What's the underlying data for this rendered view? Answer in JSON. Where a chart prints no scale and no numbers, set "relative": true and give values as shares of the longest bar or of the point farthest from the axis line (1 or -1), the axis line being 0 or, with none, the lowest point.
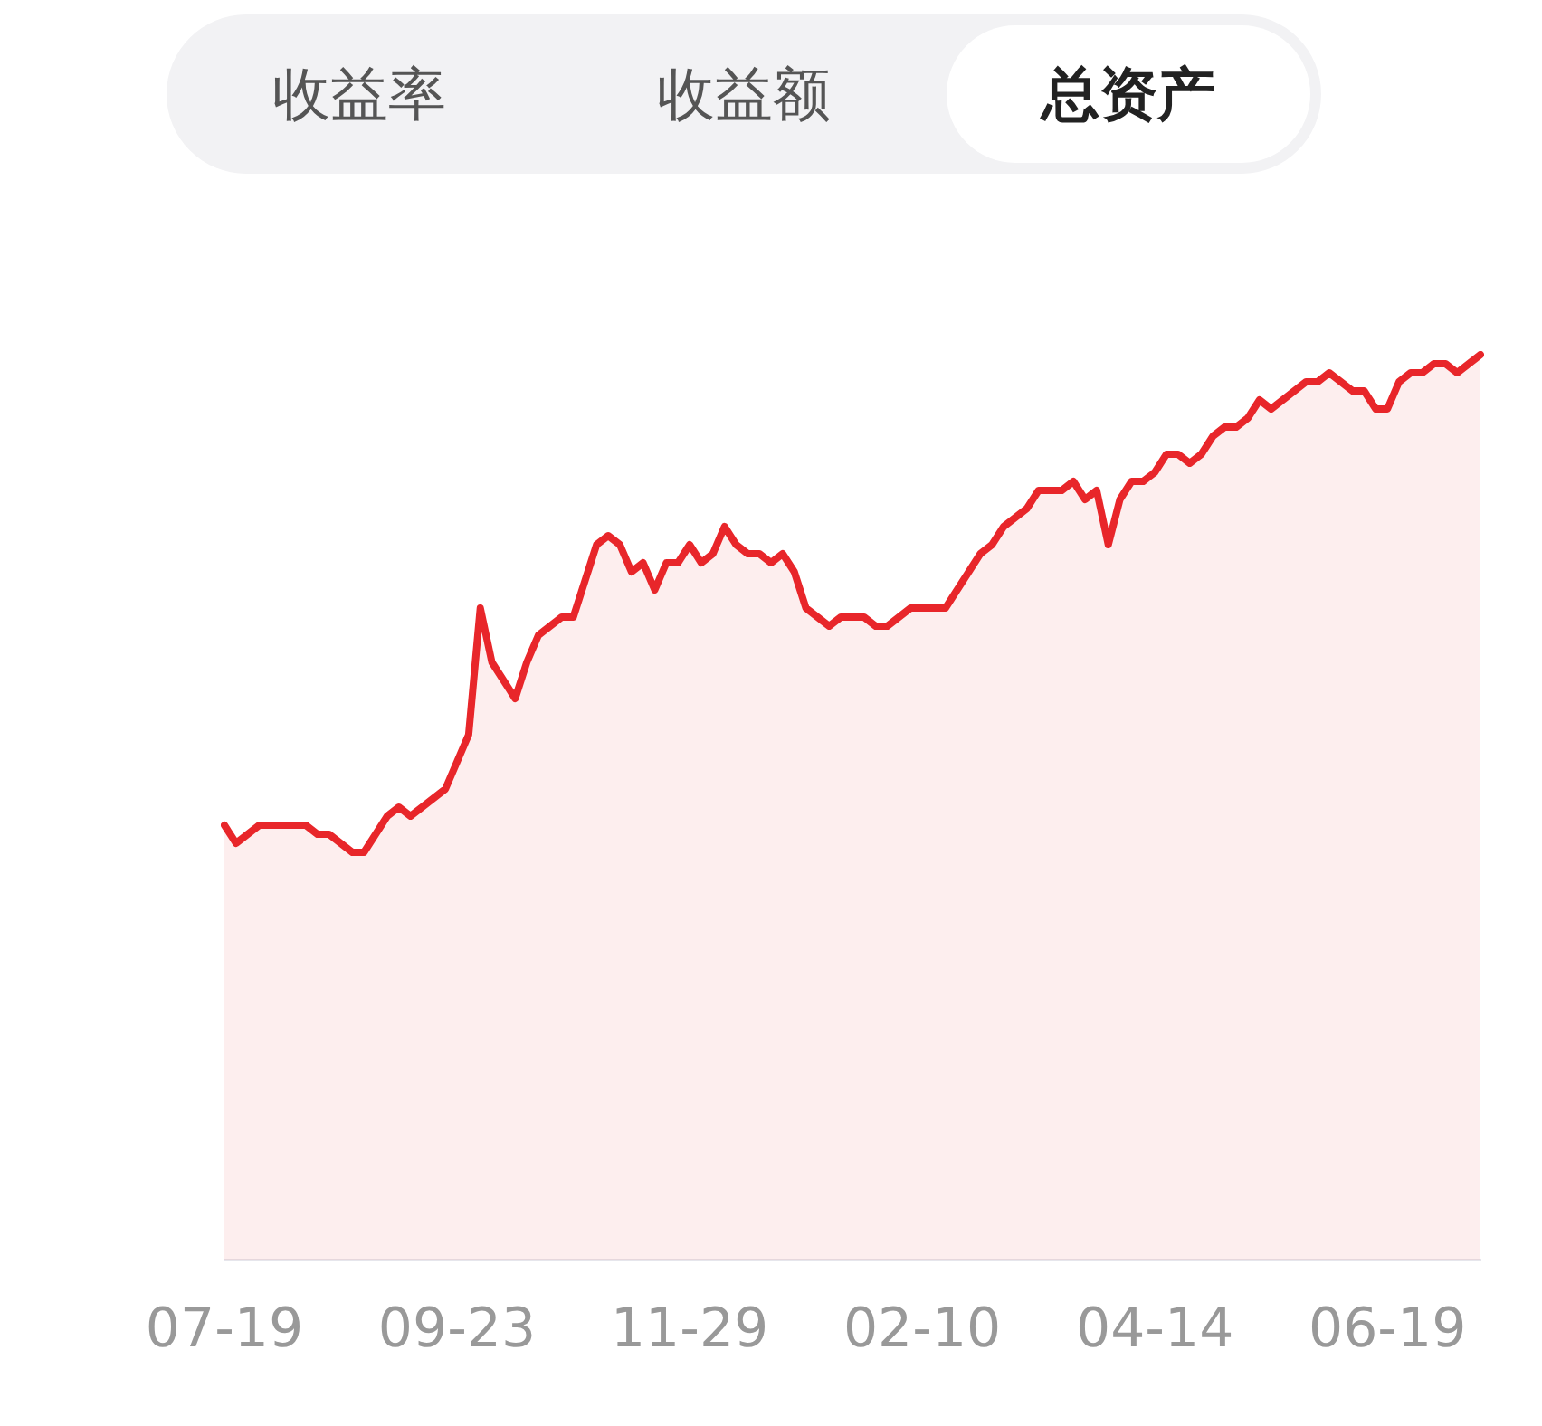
{
  "chart_data": {
    "type": "area",
    "relative": true,
    "annotations": [
      "收益率",
      "收益额",
      "总资产"
    ],
    "categories": [
      "07-19",
      null,
      null,
      null,
      null,
      null,
      null,
      null,
      null,
      null,
      null,
      null,
      null,
      null,
      null,
      null,
      null,
      null,
      null,
      null,
      "09-23",
      null,
      null,
      null,
      null,
      null,
      null,
      null,
      null,
      null,
      null,
      null,
      null,
      null,
      null,
      null,
      null,
      null,
      null,
      null,
      "11-29",
      null,
      null,
      null,
      null,
      null,
      null,
      null,
      null,
      null,
      null,
      null,
      null,
      null,
      null,
      null,
      null,
      null,
      null,
      null,
      "02-10",
      null,
      null,
      null,
      null,
      null,
      null,
      null,
      null,
      null,
      null,
      null,
      null,
      null,
      null,
      null,
      null,
      null,
      null,
      null,
      "04-14",
      null,
      null,
      null,
      null,
      null,
      null,
      null,
      null,
      null,
      null,
      null,
      null,
      null,
      null,
      null,
      null,
      null,
      null,
      null,
      "06-19",
      null,
      null,
      null,
      null,
      null,
      null,
      null,
      null
    ],
    "legend": false,
    "marker": "none",
    "line_style": "solid",
    "series": [
      {
        "color": "#e8262a",
        "values": [
          0.48,
          0.46,
          0.47,
          0.48,
          0.48,
          0.48,
          0.48,
          0.48,
          0.47,
          0.47,
          0.46,
          0.45,
          0.45,
          0.47,
          0.49,
          0.5,
          0.49,
          0.5,
          0.51,
          0.52,
          0.55,
          0.58,
          0.72,
          0.66,
          0.64,
          0.62,
          0.66,
          0.69,
          0.7,
          0.71,
          0.71,
          0.75,
          0.79,
          0.8,
          0.79,
          0.76,
          0.77,
          0.74,
          0.77,
          0.77,
          0.79,
          0.77,
          0.78,
          0.81,
          0.79,
          0.78,
          0.78,
          0.77,
          0.78,
          0.76,
          0.72,
          0.71,
          0.7,
          0.71,
          0.71,
          0.71,
          0.7,
          0.7,
          0.71,
          0.72,
          0.72,
          0.72,
          0.72,
          0.74,
          0.76,
          0.78,
          0.79,
          0.81,
          0.82,
          0.83,
          0.85,
          0.85,
          0.85,
          0.86,
          0.84,
          0.85,
          0.79,
          0.84,
          0.86,
          0.86,
          0.87,
          0.89,
          0.89,
          0.88,
          0.89,
          0.91,
          0.92,
          0.92,
          0.93,
          0.95,
          0.94,
          0.95,
          0.96,
          0.97,
          0.97,
          0.98,
          0.97,
          0.96,
          0.96,
          0.94,
          0.94,
          0.97,
          0.98,
          0.98,
          0.99,
          0.99,
          0.98,
          0.99,
          1
        ]
      }
    ]
  }
}
